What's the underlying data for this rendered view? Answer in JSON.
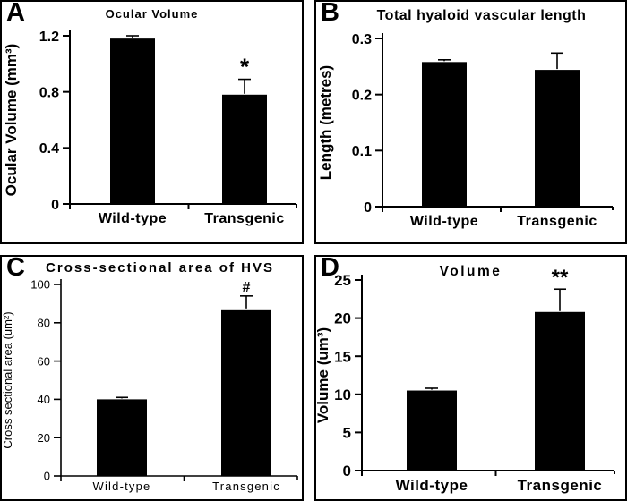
{
  "chart_data": [
    {
      "type": "bar",
      "panel_label": "A",
      "title": "Ocular Volume",
      "ylabel": "Ocular Volume (mm³)",
      "xlabel": "",
      "categories": [
        "Wild-type",
        "Transgenic"
      ],
      "values": [
        1.18,
        0.78
      ],
      "errors_upper": [
        0.02,
        0.11
      ],
      "significance": [
        "",
        "*"
      ],
      "ylim": [
        0,
        1.2
      ],
      "yticks": [
        "0",
        "0.4",
        "0.8",
        "1.2"
      ],
      "grid": false,
      "legend": false,
      "bar_color": "#000000",
      "axis_color": "#000000"
    },
    {
      "type": "bar",
      "panel_label": "B",
      "title": "Total hyaloid vascular length",
      "ylabel": "Length (metres)",
      "xlabel": "",
      "categories": [
        "Wild-type",
        "Transgenic"
      ],
      "values": [
        0.258,
        0.244
      ],
      "errors_upper": [
        0.004,
        0.03
      ],
      "significance": [
        "",
        ""
      ],
      "ylim": [
        0,
        0.3
      ],
      "yticks": [
        "0",
        "0.1",
        "0.2",
        "0.3"
      ],
      "grid": false,
      "legend": false,
      "bar_color": "#000000",
      "axis_color": "#000000"
    },
    {
      "type": "bar",
      "panel_label": "C",
      "title": "Cross-sectional area of HVS",
      "ylabel": "Cross sectional area (um²)",
      "xlabel": "",
      "categories": [
        "Wild-type",
        "Transgenic"
      ],
      "values": [
        40,
        87
      ],
      "errors_upper": [
        1,
        7
      ],
      "significance": [
        "",
        "#"
      ],
      "ylim": [
        0,
        100
      ],
      "yticks": [
        "0",
        "20",
        "40",
        "60",
        "80",
        "100"
      ],
      "grid": false,
      "legend": false,
      "bar_color": "#000000",
      "axis_color": "#000000"
    },
    {
      "type": "bar",
      "panel_label": "D",
      "title": "Volume",
      "ylabel": "Volume (um³)",
      "xlabel": "",
      "categories": [
        "Wild-type",
        "Transgenic"
      ],
      "values": [
        10.5,
        20.8
      ],
      "errors_upper": [
        0.3,
        3.0
      ],
      "significance": [
        "",
        "**"
      ],
      "ylim": [
        0,
        25
      ],
      "yticks": [
        "0",
        "5",
        "10",
        "15",
        "20",
        "25"
      ],
      "grid": false,
      "legend": false,
      "bar_color": "#000000",
      "axis_color": "#000000"
    }
  ]
}
